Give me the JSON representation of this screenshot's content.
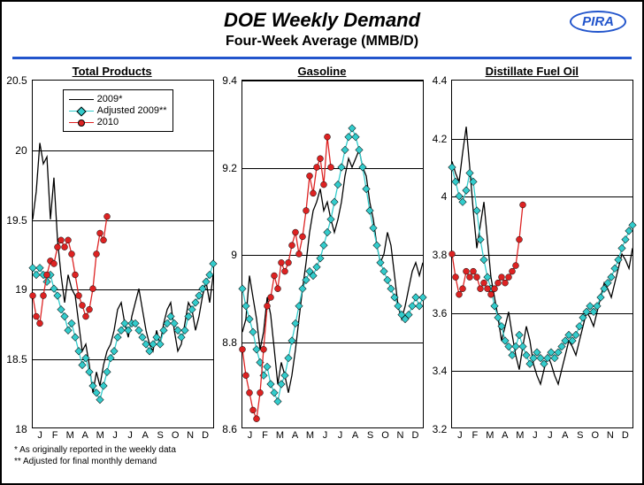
{
  "header": {
    "title": "DOE Weekly Demand",
    "subtitle": "Four-Week Average (MMB/D)",
    "logo": "PIRA"
  },
  "legend": {
    "s1": "2009*",
    "s2": "Adjusted 2009**",
    "s3": "2010"
  },
  "colors": {
    "s1": "#000000",
    "s2": "#33cccc",
    "s3": "#dd2222",
    "grid": "#000000",
    "rule": "#2255cc"
  },
  "xticks": [
    "J",
    "F",
    "M",
    "A",
    "M",
    "J",
    "J",
    "A",
    "S",
    "O",
    "N",
    "D"
  ],
  "footnotes": {
    "f1": "*   As originally reported in the weekly data",
    "f2": "**  Adjusted for final monthly demand"
  },
  "panels": [
    {
      "title": "Total Products",
      "ymin": 18,
      "ymax": 20.5,
      "ystep": 0.5,
      "s1": [
        19.5,
        19.7,
        20.05,
        19.9,
        19.95,
        19.5,
        19.8,
        19.35,
        19.1,
        18.9,
        19.1,
        19.0,
        18.95,
        18.75,
        18.55,
        18.6,
        18.45,
        18.25,
        18.4,
        18.3,
        18.45,
        18.55,
        18.6,
        18.7,
        18.85,
        18.9,
        18.75,
        18.65,
        18.8,
        18.9,
        19.0,
        18.85,
        18.7,
        18.6,
        18.55,
        18.7,
        18.6,
        18.75,
        18.85,
        18.9,
        18.7,
        18.55,
        18.6,
        18.75,
        18.9,
        18.85,
        18.7,
        18.8,
        18.95,
        19.05,
        18.9,
        19.1
      ],
      "s2": [
        19.15,
        19.1,
        19.15,
        19.1,
        19.05,
        19.1,
        19.0,
        18.95,
        18.85,
        18.8,
        18.7,
        18.75,
        18.65,
        18.55,
        18.45,
        18.5,
        18.4,
        18.3,
        18.25,
        18.2,
        18.3,
        18.4,
        18.5,
        18.55,
        18.65,
        18.7,
        18.75,
        18.7,
        18.75,
        18.75,
        18.7,
        18.65,
        18.6,
        18.55,
        18.6,
        18.65,
        18.6,
        18.7,
        18.75,
        18.8,
        18.75,
        18.7,
        18.65,
        18.7,
        18.8,
        18.85,
        18.9,
        18.95,
        19.0,
        19.05,
        19.1,
        19.18
      ],
      "s3": [
        18.95,
        18.8,
        18.75,
        18.95,
        19.1,
        19.2,
        19.18,
        19.3,
        19.35,
        19.3,
        19.35,
        19.25,
        19.1,
        18.95,
        18.88,
        18.8,
        18.85,
        19.0,
        19.25,
        19.4,
        19.35,
        19.52
      ]
    },
    {
      "title": "Gasoline",
      "ymin": 8.6,
      "ymax": 9.4,
      "ystep": 0.2,
      "s1": [
        8.82,
        8.85,
        8.95,
        8.9,
        8.85,
        8.78,
        8.82,
        8.9,
        8.86,
        8.78,
        8.7,
        8.75,
        8.72,
        8.68,
        8.72,
        8.78,
        8.85,
        8.92,
        8.98,
        9.05,
        9.1,
        9.12,
        9.15,
        9.1,
        9.12,
        9.08,
        9.05,
        9.08,
        9.12,
        9.18,
        9.22,
        9.2,
        9.22,
        9.24,
        9.2,
        9.18,
        9.12,
        9.08,
        9.02,
        8.98,
        9.0,
        9.05,
        9.02,
        8.95,
        8.88,
        8.85,
        8.88,
        8.92,
        8.96,
        8.98,
        8.95,
        8.98
      ],
      "s2": [
        8.92,
        8.88,
        8.85,
        8.82,
        8.78,
        8.75,
        8.72,
        8.74,
        8.7,
        8.68,
        8.66,
        8.7,
        8.72,
        8.76,
        8.8,
        8.84,
        8.88,
        8.92,
        8.94,
        8.96,
        8.95,
        8.97,
        8.99,
        9.02,
        9.05,
        9.08,
        9.12,
        9.16,
        9.2,
        9.24,
        9.27,
        9.29,
        9.27,
        9.24,
        9.2,
        9.15,
        9.1,
        9.06,
        9.02,
        8.98,
        8.96,
        8.94,
        8.92,
        8.9,
        8.88,
        8.86,
        8.85,
        8.86,
        8.88,
        8.9,
        8.88,
        8.9
      ],
      "s3": [
        8.78,
        8.72,
        8.68,
        8.64,
        8.62,
        8.68,
        8.78,
        8.88,
        8.9,
        8.95,
        8.92,
        8.98,
        8.96,
        8.98,
        9.02,
        9.05,
        9.0,
        9.04,
        9.1,
        9.18,
        9.14,
        9.2,
        9.22,
        9.16,
        9.27,
        9.2
      ]
    },
    {
      "title": "Distillate Fuel Oil",
      "ymin": 3.2,
      "ymax": 4.4,
      "ystep": 0.2,
      "s1": [
        4.12,
        4.08,
        4.05,
        4.15,
        4.24,
        4.1,
        3.95,
        3.82,
        3.9,
        3.98,
        3.85,
        3.72,
        3.65,
        3.58,
        3.5,
        3.55,
        3.6,
        3.52,
        3.45,
        3.4,
        3.48,
        3.55,
        3.5,
        3.42,
        3.38,
        3.35,
        3.4,
        3.45,
        3.42,
        3.38,
        3.35,
        3.4,
        3.45,
        3.5,
        3.48,
        3.45,
        3.5,
        3.55,
        3.6,
        3.58,
        3.55,
        3.6,
        3.65,
        3.7,
        3.68,
        3.65,
        3.7,
        3.75,
        3.8,
        3.78,
        3.75,
        3.82
      ],
      "s2": [
        4.1,
        4.05,
        4.0,
        3.98,
        4.02,
        4.08,
        4.05,
        3.95,
        3.85,
        3.78,
        3.72,
        3.68,
        3.62,
        3.58,
        3.55,
        3.5,
        3.48,
        3.45,
        3.48,
        3.52,
        3.48,
        3.45,
        3.42,
        3.44,
        3.46,
        3.44,
        3.42,
        3.44,
        3.46,
        3.44,
        3.46,
        3.48,
        3.5,
        3.52,
        3.5,
        3.52,
        3.55,
        3.58,
        3.6,
        3.62,
        3.6,
        3.62,
        3.65,
        3.68,
        3.7,
        3.72,
        3.75,
        3.78,
        3.82,
        3.85,
        3.88,
        3.9
      ],
      "s3": [
        3.8,
        3.72,
        3.66,
        3.68,
        3.74,
        3.72,
        3.74,
        3.72,
        3.68,
        3.7,
        3.68,
        3.66,
        3.68,
        3.7,
        3.72,
        3.7,
        3.72,
        3.74,
        3.76,
        3.85,
        3.97
      ]
    }
  ]
}
